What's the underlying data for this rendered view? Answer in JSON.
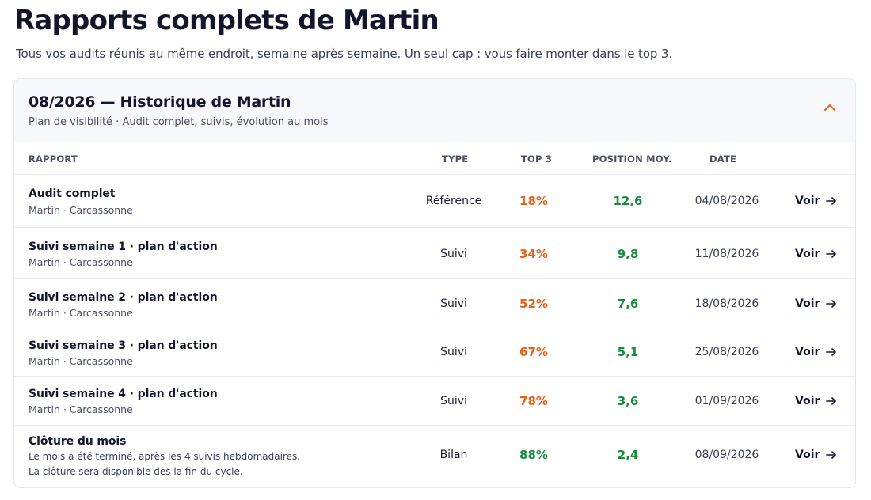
{
  "page": {
    "title": "Rapports complets de Martin",
    "subtitle": "Tous vos audits réunis au même endroit, semaine après semaine. Un seul cap : vous faire monter dans le top 3."
  },
  "card": {
    "title": "08/2026 — Historique de Martin",
    "subtitle": "Plan de visibilité · Audit complet, suivis, évolution au mois",
    "toggle_icon": "chevron-up-icon"
  },
  "table": {
    "headers": {
      "report": "RAPPORT",
      "type": "TYPE",
      "top3": "TOP 3",
      "position": "POSITION MOY.",
      "date": "DATE"
    },
    "action_label": "Voir",
    "colors": {
      "orange": "#e8611a",
      "green": "#1b8a3e"
    },
    "rows": [
      {
        "title": "Audit complet",
        "sub": "Martin · Carcassonne",
        "type": "Référence",
        "top3": "18%",
        "position": "12,6",
        "date": "04/08/2026"
      },
      {
        "title": "Suivi semaine 1 · plan d'action",
        "sub": "Martin · Carcassonne",
        "type": "Suivi",
        "top3": "34%",
        "position": "9,8",
        "date": "11/08/2026"
      },
      {
        "title": "Suivi semaine 2 · plan d'action",
        "sub": "Martin · Carcassonne",
        "type": "Suivi",
        "top3": "52%",
        "position": "7,6",
        "date": "18/08/2026"
      },
      {
        "title": "Suivi semaine 3 · plan d'action",
        "sub": "Martin · Carcassonne",
        "type": "Suivi",
        "top3": "67%",
        "position": "5,1",
        "date": "25/08/2026"
      },
      {
        "title": "Suivi semaine 4 · plan d'action",
        "sub": "Martin · Carcassonne",
        "type": "Suivi",
        "top3": "78%",
        "position": "3,6",
        "date": "01/09/2026"
      },
      {
        "title": "Clôture du mois",
        "note1": "Le mois a été terminé, après les 4 suivis hebdomadaires.",
        "note2": "La clôture sera disponible dès la fin du cycle.",
        "type": "Bilan",
        "top3": "88%",
        "position": "2,4",
        "date": "08/09/2026"
      }
    ]
  }
}
